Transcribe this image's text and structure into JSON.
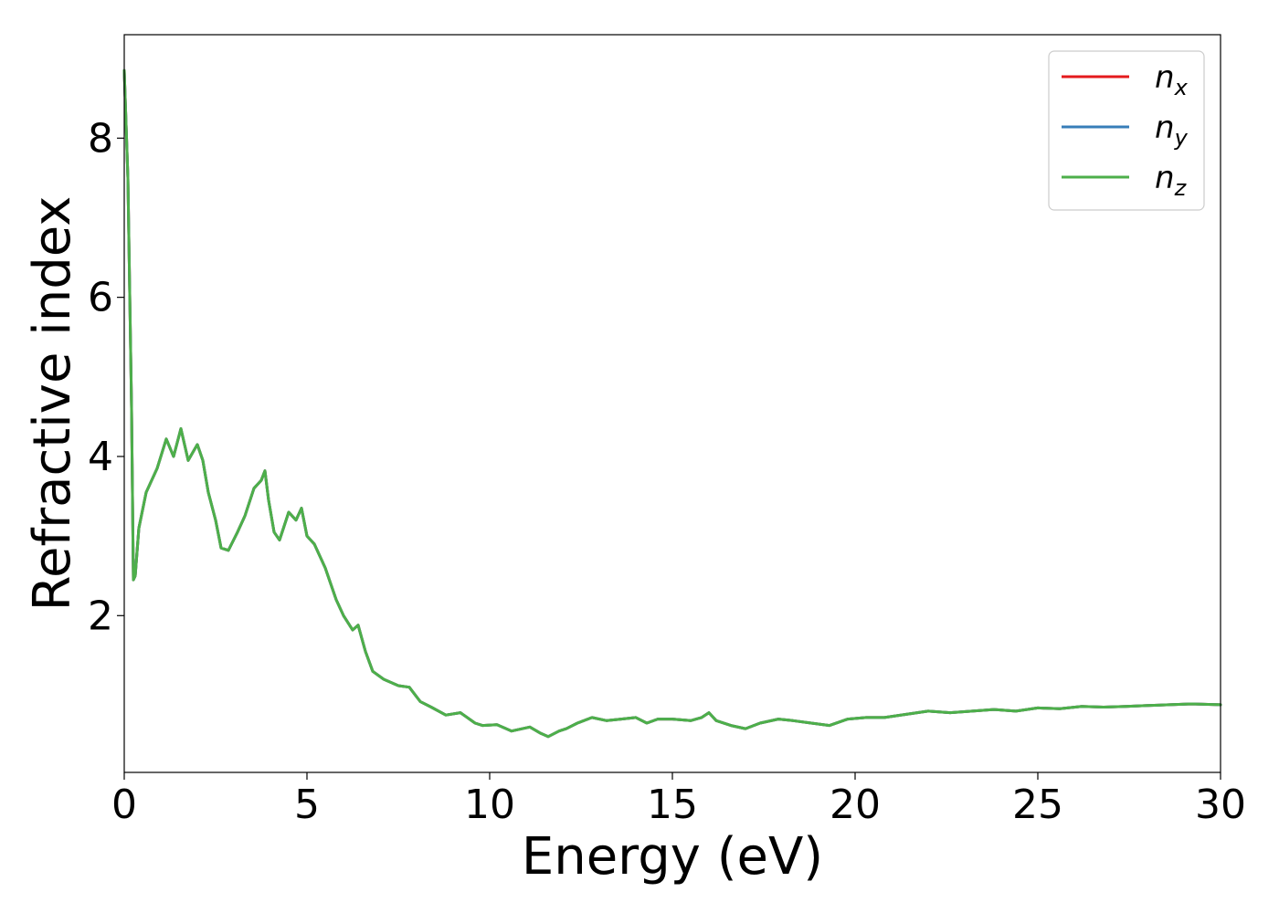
{
  "chart_data": {
    "type": "line",
    "xlabel": "Energy (eV)",
    "ylabel": "Refractive index",
    "xlim": [
      0,
      30
    ],
    "ylim": [
      0.03,
      9.3
    ],
    "xticks": [
      0,
      5,
      10,
      15,
      20,
      25,
      30
    ],
    "yticks": [
      2,
      4,
      6,
      8
    ],
    "grid": false,
    "legend_position": "top-right",
    "series": [
      {
        "name": "n_x",
        "base": "n",
        "sub": "x",
        "color": "#e41a1c",
        "x": [
          0.0,
          0.1,
          0.2,
          0.25,
          0.3,
          0.4,
          0.6,
          0.9,
          1.15,
          1.35,
          1.55,
          1.75,
          2.0,
          2.15,
          2.3,
          2.5,
          2.65,
          2.85,
          3.1,
          3.3,
          3.55,
          3.75,
          3.85,
          3.95,
          4.1,
          4.25,
          4.5,
          4.7,
          4.85,
          5.0,
          5.2,
          5.5,
          5.8,
          6.0,
          6.25,
          6.4,
          6.6,
          6.8,
          7.1,
          7.5,
          7.8,
          8.1,
          8.4,
          8.8,
          9.2,
          9.6,
          9.8,
          10.2,
          10.6,
          11.1,
          11.4,
          11.6,
          11.9,
          12.1,
          12.4,
          12.8,
          13.2,
          13.6,
          14.0,
          14.3,
          14.6,
          15.0,
          15.5,
          15.8,
          16.0,
          16.2,
          16.6,
          17.0,
          17.4,
          17.9,
          18.3,
          18.8,
          19.3,
          19.8,
          20.3,
          20.8,
          21.4,
          22.0,
          22.6,
          23.2,
          23.8,
          24.4,
          25.0,
          25.6,
          26.2,
          26.8,
          27.4,
          28.0,
          28.6,
          29.2,
          30.0
        ],
        "y": [
          8.85,
          7.5,
          4.6,
          2.45,
          2.5,
          3.1,
          3.55,
          3.85,
          4.22,
          4.0,
          4.35,
          3.95,
          4.15,
          3.95,
          3.55,
          3.2,
          2.85,
          2.82,
          3.05,
          3.25,
          3.6,
          3.7,
          3.82,
          3.45,
          3.05,
          2.95,
          3.3,
          3.2,
          3.35,
          3.0,
          2.9,
          2.6,
          2.2,
          2.0,
          1.82,
          1.88,
          1.55,
          1.3,
          1.2,
          1.12,
          1.1,
          0.92,
          0.85,
          0.75,
          0.78,
          0.65,
          0.62,
          0.63,
          0.55,
          0.6,
          0.52,
          0.48,
          0.55,
          0.58,
          0.65,
          0.72,
          0.68,
          0.7,
          0.72,
          0.65,
          0.7,
          0.7,
          0.68,
          0.72,
          0.78,
          0.68,
          0.62,
          0.58,
          0.65,
          0.7,
          0.68,
          0.65,
          0.62,
          0.7,
          0.72,
          0.72,
          0.76,
          0.8,
          0.78,
          0.8,
          0.82,
          0.8,
          0.84,
          0.83,
          0.86,
          0.85,
          0.86,
          0.87,
          0.88,
          0.89,
          0.88
        ]
      },
      {
        "name": "n_y",
        "base": "n",
        "sub": "y",
        "color": "#377eb8",
        "x": [
          0.0,
          0.1,
          0.2,
          0.25,
          0.3,
          0.4,
          0.6,
          0.9,
          1.15,
          1.35,
          1.55,
          1.75,
          2.0,
          2.15,
          2.3,
          2.5,
          2.65,
          2.85,
          3.1,
          3.3,
          3.55,
          3.75,
          3.85,
          3.95,
          4.1,
          4.25,
          4.5,
          4.7,
          4.85,
          5.0,
          5.2,
          5.5,
          5.8,
          6.0,
          6.25,
          6.4,
          6.6,
          6.8,
          7.1,
          7.5,
          7.8,
          8.1,
          8.4,
          8.8,
          9.2,
          9.6,
          9.8,
          10.2,
          10.6,
          11.1,
          11.4,
          11.6,
          11.9,
          12.1,
          12.4,
          12.8,
          13.2,
          13.6,
          14.0,
          14.3,
          14.6,
          15.0,
          15.5,
          15.8,
          16.0,
          16.2,
          16.6,
          17.0,
          17.4,
          17.9,
          18.3,
          18.8,
          19.3,
          19.8,
          20.3,
          20.8,
          21.4,
          22.0,
          22.6,
          23.2,
          23.8,
          24.4,
          25.0,
          25.6,
          26.2,
          26.8,
          27.4,
          28.0,
          28.6,
          29.2,
          30.0
        ],
        "y": [
          8.85,
          7.5,
          4.6,
          2.45,
          2.5,
          3.1,
          3.55,
          3.85,
          4.22,
          4.0,
          4.35,
          3.95,
          4.15,
          3.95,
          3.55,
          3.2,
          2.85,
          2.82,
          3.05,
          3.25,
          3.6,
          3.7,
          3.82,
          3.45,
          3.05,
          2.95,
          3.3,
          3.2,
          3.35,
          3.0,
          2.9,
          2.6,
          2.2,
          2.0,
          1.82,
          1.88,
          1.55,
          1.3,
          1.2,
          1.12,
          1.1,
          0.92,
          0.85,
          0.75,
          0.78,
          0.65,
          0.62,
          0.63,
          0.55,
          0.6,
          0.52,
          0.48,
          0.55,
          0.58,
          0.65,
          0.72,
          0.68,
          0.7,
          0.72,
          0.65,
          0.7,
          0.7,
          0.68,
          0.72,
          0.78,
          0.68,
          0.62,
          0.58,
          0.65,
          0.7,
          0.68,
          0.65,
          0.62,
          0.7,
          0.72,
          0.72,
          0.76,
          0.8,
          0.78,
          0.8,
          0.82,
          0.8,
          0.84,
          0.83,
          0.86,
          0.85,
          0.86,
          0.87,
          0.88,
          0.89,
          0.88
        ]
      },
      {
        "name": "n_z",
        "base": "n",
        "sub": "z",
        "color": "#4daf4a",
        "x": [
          0.0,
          0.1,
          0.2,
          0.25,
          0.3,
          0.4,
          0.6,
          0.9,
          1.15,
          1.35,
          1.55,
          1.75,
          2.0,
          2.15,
          2.3,
          2.5,
          2.65,
          2.85,
          3.1,
          3.3,
          3.55,
          3.75,
          3.85,
          3.95,
          4.1,
          4.25,
          4.5,
          4.7,
          4.85,
          5.0,
          5.2,
          5.5,
          5.8,
          6.0,
          6.25,
          6.4,
          6.6,
          6.8,
          7.1,
          7.5,
          7.8,
          8.1,
          8.4,
          8.8,
          9.2,
          9.6,
          9.8,
          10.2,
          10.6,
          11.1,
          11.4,
          11.6,
          11.9,
          12.1,
          12.4,
          12.8,
          13.2,
          13.6,
          14.0,
          14.3,
          14.6,
          15.0,
          15.5,
          15.8,
          16.0,
          16.2,
          16.6,
          17.0,
          17.4,
          17.9,
          18.3,
          18.8,
          19.3,
          19.8,
          20.3,
          20.8,
          21.4,
          22.0,
          22.6,
          23.2,
          23.8,
          24.4,
          25.0,
          25.6,
          26.2,
          26.8,
          27.4,
          28.0,
          28.6,
          29.2,
          30.0
        ],
        "y": [
          8.85,
          7.5,
          4.6,
          2.45,
          2.5,
          3.1,
          3.55,
          3.85,
          4.22,
          4.0,
          4.35,
          3.95,
          4.15,
          3.95,
          3.55,
          3.2,
          2.85,
          2.82,
          3.05,
          3.25,
          3.6,
          3.7,
          3.82,
          3.45,
          3.05,
          2.95,
          3.3,
          3.2,
          3.35,
          3.0,
          2.9,
          2.6,
          2.2,
          2.0,
          1.82,
          1.88,
          1.55,
          1.3,
          1.2,
          1.12,
          1.1,
          0.92,
          0.85,
          0.75,
          0.78,
          0.65,
          0.62,
          0.63,
          0.55,
          0.6,
          0.52,
          0.48,
          0.55,
          0.58,
          0.65,
          0.72,
          0.68,
          0.7,
          0.72,
          0.65,
          0.7,
          0.7,
          0.68,
          0.72,
          0.78,
          0.68,
          0.62,
          0.58,
          0.65,
          0.7,
          0.68,
          0.65,
          0.62,
          0.7,
          0.72,
          0.72,
          0.76,
          0.8,
          0.78,
          0.8,
          0.82,
          0.8,
          0.84,
          0.83,
          0.86,
          0.85,
          0.86,
          0.87,
          0.88,
          0.89,
          0.88
        ]
      }
    ]
  }
}
